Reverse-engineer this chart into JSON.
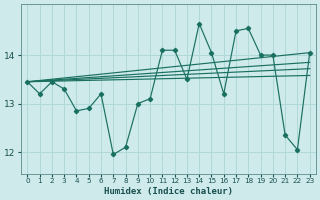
{
  "x": [
    0,
    1,
    2,
    3,
    4,
    5,
    6,
    7,
    8,
    9,
    10,
    11,
    12,
    13,
    14,
    15,
    16,
    17,
    18,
    19,
    20,
    21,
    22,
    23
  ],
  "y_main": [
    13.45,
    13.2,
    13.45,
    13.3,
    12.85,
    12.9,
    13.2,
    11.95,
    12.1,
    13.0,
    13.1,
    14.1,
    14.1,
    13.5,
    14.65,
    14.05,
    13.2,
    14.5,
    14.55,
    14.0,
    14.0,
    12.35,
    12.05,
    14.05
  ],
  "trend_lines": [
    [
      [
        0,
        23
      ],
      [
        13.45,
        14.05
      ]
    ],
    [
      [
        0,
        23
      ],
      [
        13.45,
        13.85
      ]
    ],
    [
      [
        0,
        23
      ],
      [
        13.45,
        13.72
      ]
    ],
    [
      [
        0,
        23
      ],
      [
        13.45,
        13.58
      ]
    ]
  ],
  "bg_color": "#ceeaea",
  "line_color": "#1a7060",
  "grid_color": "#b0d8d8",
  "xlabel": "Humidex (Indice chaleur)",
  "ylim": [
    11.55,
    15.05
  ],
  "xlim": [
    -0.5,
    23.5
  ],
  "yticks": [
    12,
    13,
    14
  ],
  "xticks": [
    0,
    1,
    2,
    3,
    4,
    5,
    6,
    7,
    8,
    9,
    10,
    11,
    12,
    13,
    14,
    15,
    16,
    17,
    18,
    19,
    20,
    21,
    22,
    23
  ]
}
